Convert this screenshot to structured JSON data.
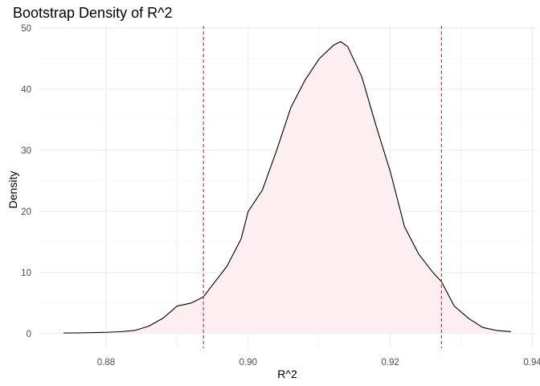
{
  "chart_data": {
    "type": "area",
    "title": "Bootstrap Density of R^2",
    "xlabel": "R^2",
    "ylabel": "Density",
    "xlim": [
      0.8705,
      0.9405
    ],
    "ylim": [
      -2.4,
      50.4
    ],
    "xticks": [
      0.88,
      0.9,
      0.92,
      0.94
    ],
    "xtick_labels": [
      "0.88",
      "0.90",
      "0.92",
      "0.94"
    ],
    "yticks": [
      0,
      10,
      20,
      30,
      40,
      50
    ],
    "ytick_labels": [
      "0",
      "10",
      "20",
      "30",
      "40",
      "50"
    ],
    "grid": true,
    "fill_color": "#fdeef1",
    "line_color": "#000000",
    "vline_color": "#d9262c",
    "vlines": [
      0.8937,
      0.9272
    ],
    "series": [
      {
        "x": [
          0.874,
          0.876,
          0.878,
          0.88,
          0.882,
          0.884,
          0.886,
          0.888,
          0.89,
          0.892,
          0.8937,
          0.895,
          0.897,
          0.899,
          0.9,
          0.902,
          0.904,
          0.906,
          0.908,
          0.91,
          0.912,
          0.913,
          0.914,
          0.916,
          0.918,
          0.92,
          0.922,
          0.924,
          0.926,
          0.9272,
          0.929,
          0.931,
          0.933,
          0.935,
          0.937
        ],
        "y": [
          0.1,
          0.1,
          0.15,
          0.2,
          0.3,
          0.5,
          1.2,
          2.5,
          4.5,
          5.0,
          6.0,
          8.0,
          11.0,
          15.5,
          20.0,
          23.5,
          30.0,
          37.0,
          41.5,
          45.0,
          47.2,
          47.8,
          47.0,
          42.0,
          34.0,
          26.5,
          17.5,
          13.0,
          10.0,
          8.5,
          4.5,
          2.5,
          1.0,
          0.5,
          0.3
        ]
      }
    ]
  }
}
